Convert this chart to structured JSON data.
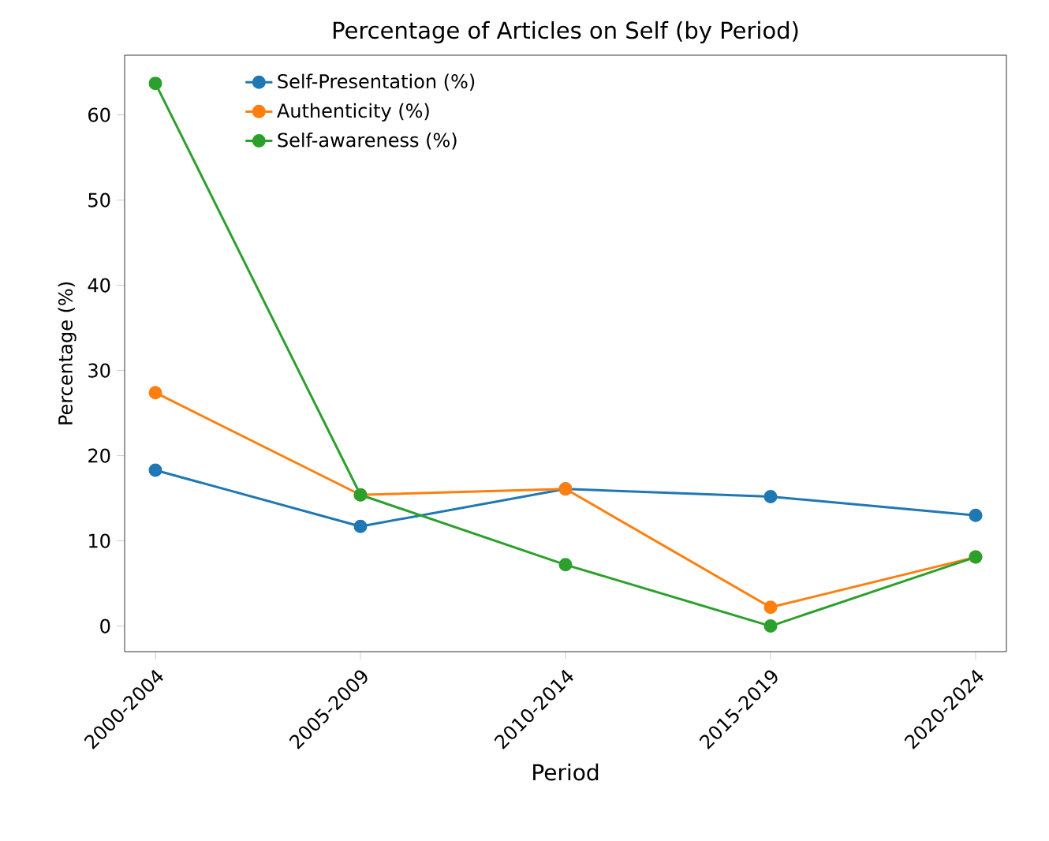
{
  "chart_data": {
    "type": "line",
    "title": "Percentage of Articles on Self (by Period)",
    "xlabel": "Period",
    "ylabel": "Percentage (%)",
    "categories": [
      "2000-2004",
      "2005-2009",
      "2010-2014",
      "2015-2019",
      "2020-2024"
    ],
    "series": [
      {
        "name": "Self-Presentation (%)",
        "color": "#1f77b4",
        "values": [
          18.3,
          11.7,
          16.1,
          15.2,
          13.0
        ]
      },
      {
        "name": "Authenticity (%)",
        "color": "#ff7f0e",
        "values": [
          27.4,
          15.4,
          16.1,
          2.2,
          8.1
        ]
      },
      {
        "name": "Self-awareness (%)",
        "color": "#2ca02c",
        "values": [
          63.7,
          15.4,
          7.2,
          0,
          8.1
        ]
      }
    ],
    "ylim": [
      -3,
      67
    ],
    "yticks": [
      0,
      10,
      20,
      30,
      40,
      50,
      60
    ],
    "marker": "circle",
    "line_style": "solid",
    "legend": "top left",
    "grid": false
  }
}
